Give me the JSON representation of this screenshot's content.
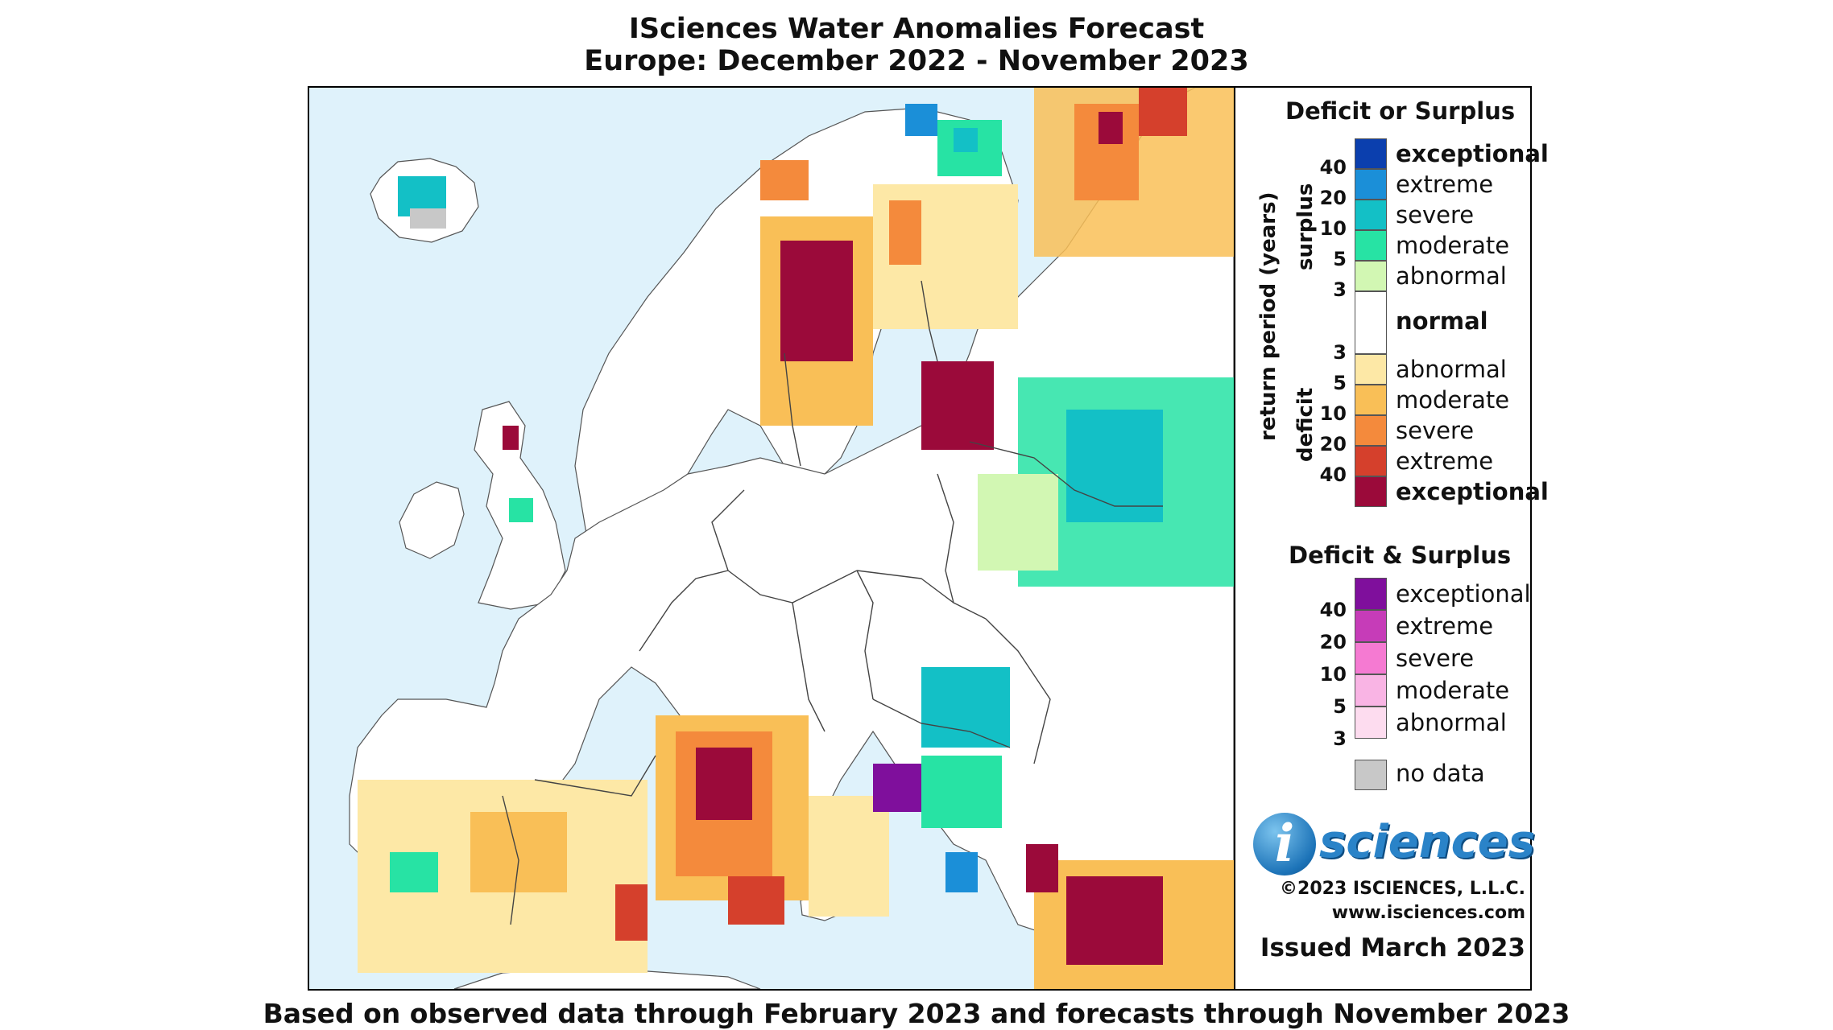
{
  "title": {
    "line1": "ISciences Water Anomalies Forecast",
    "line2": "Europe: December 2022 - November 2023"
  },
  "footer": "Based on observed data through February 2023 and forecasts through November 2023",
  "legend": {
    "deficit_or_surplus": {
      "heading": "Deficit or Surplus",
      "axis_label": "return period (years)",
      "surplus_label": "surplus",
      "deficit_label": "deficit",
      "surplus_numbers": [
        "40",
        "20",
        "10",
        "5",
        "3"
      ],
      "deficit_numbers": [
        "3",
        "5",
        "10",
        "20",
        "40"
      ],
      "surplus_classes": [
        {
          "label": "exceptional",
          "color": "#0b3fae",
          "bold": true
        },
        {
          "label": "extreme",
          "color": "#1b8fd8",
          "bold": false
        },
        {
          "label": "severe",
          "color": "#13c0c6",
          "bold": false
        },
        {
          "label": "moderate",
          "color": "#27e3a4",
          "bold": false
        },
        {
          "label": "abnormal",
          "color": "#d2f7b3",
          "bold": false
        }
      ],
      "normal": {
        "label": "normal",
        "color": "#ffffff"
      },
      "deficit_classes": [
        {
          "label": "abnormal",
          "color": "#fde8a6",
          "bold": false
        },
        {
          "label": "moderate",
          "color": "#f9bf57",
          "bold": false
        },
        {
          "label": "severe",
          "color": "#f48a3c",
          "bold": false
        },
        {
          "label": "extreme",
          "color": "#d5402c",
          "bold": false
        },
        {
          "label": "exceptional",
          "color": "#9b0a3a",
          "bold": true
        }
      ]
    },
    "deficit_and_surplus": {
      "heading": "Deficit & Surplus",
      "numbers": [
        "40",
        "20",
        "10",
        "5",
        "3"
      ],
      "classes": [
        {
          "label": "exceptional",
          "color": "#7f0f9c"
        },
        {
          "label": "extreme",
          "color": "#c63cb8"
        },
        {
          "label": "severe",
          "color": "#f57ad2"
        },
        {
          "label": "moderate",
          "color": "#f9b4e4"
        },
        {
          "label": "abnormal",
          "color": "#fddcef"
        }
      ]
    },
    "no_data": {
      "label": "no data",
      "color": "#c8c8c8"
    }
  },
  "logo": {
    "mark": "i",
    "word": "sciences"
  },
  "copyright": "©2023 ISCIENCES, L.L.C.",
  "website": "www.isciences.com",
  "issued": "Issued March 2023",
  "map_colors": {
    "sea": "#dff2fb",
    "land": "#ffffff",
    "border": "#444444"
  }
}
